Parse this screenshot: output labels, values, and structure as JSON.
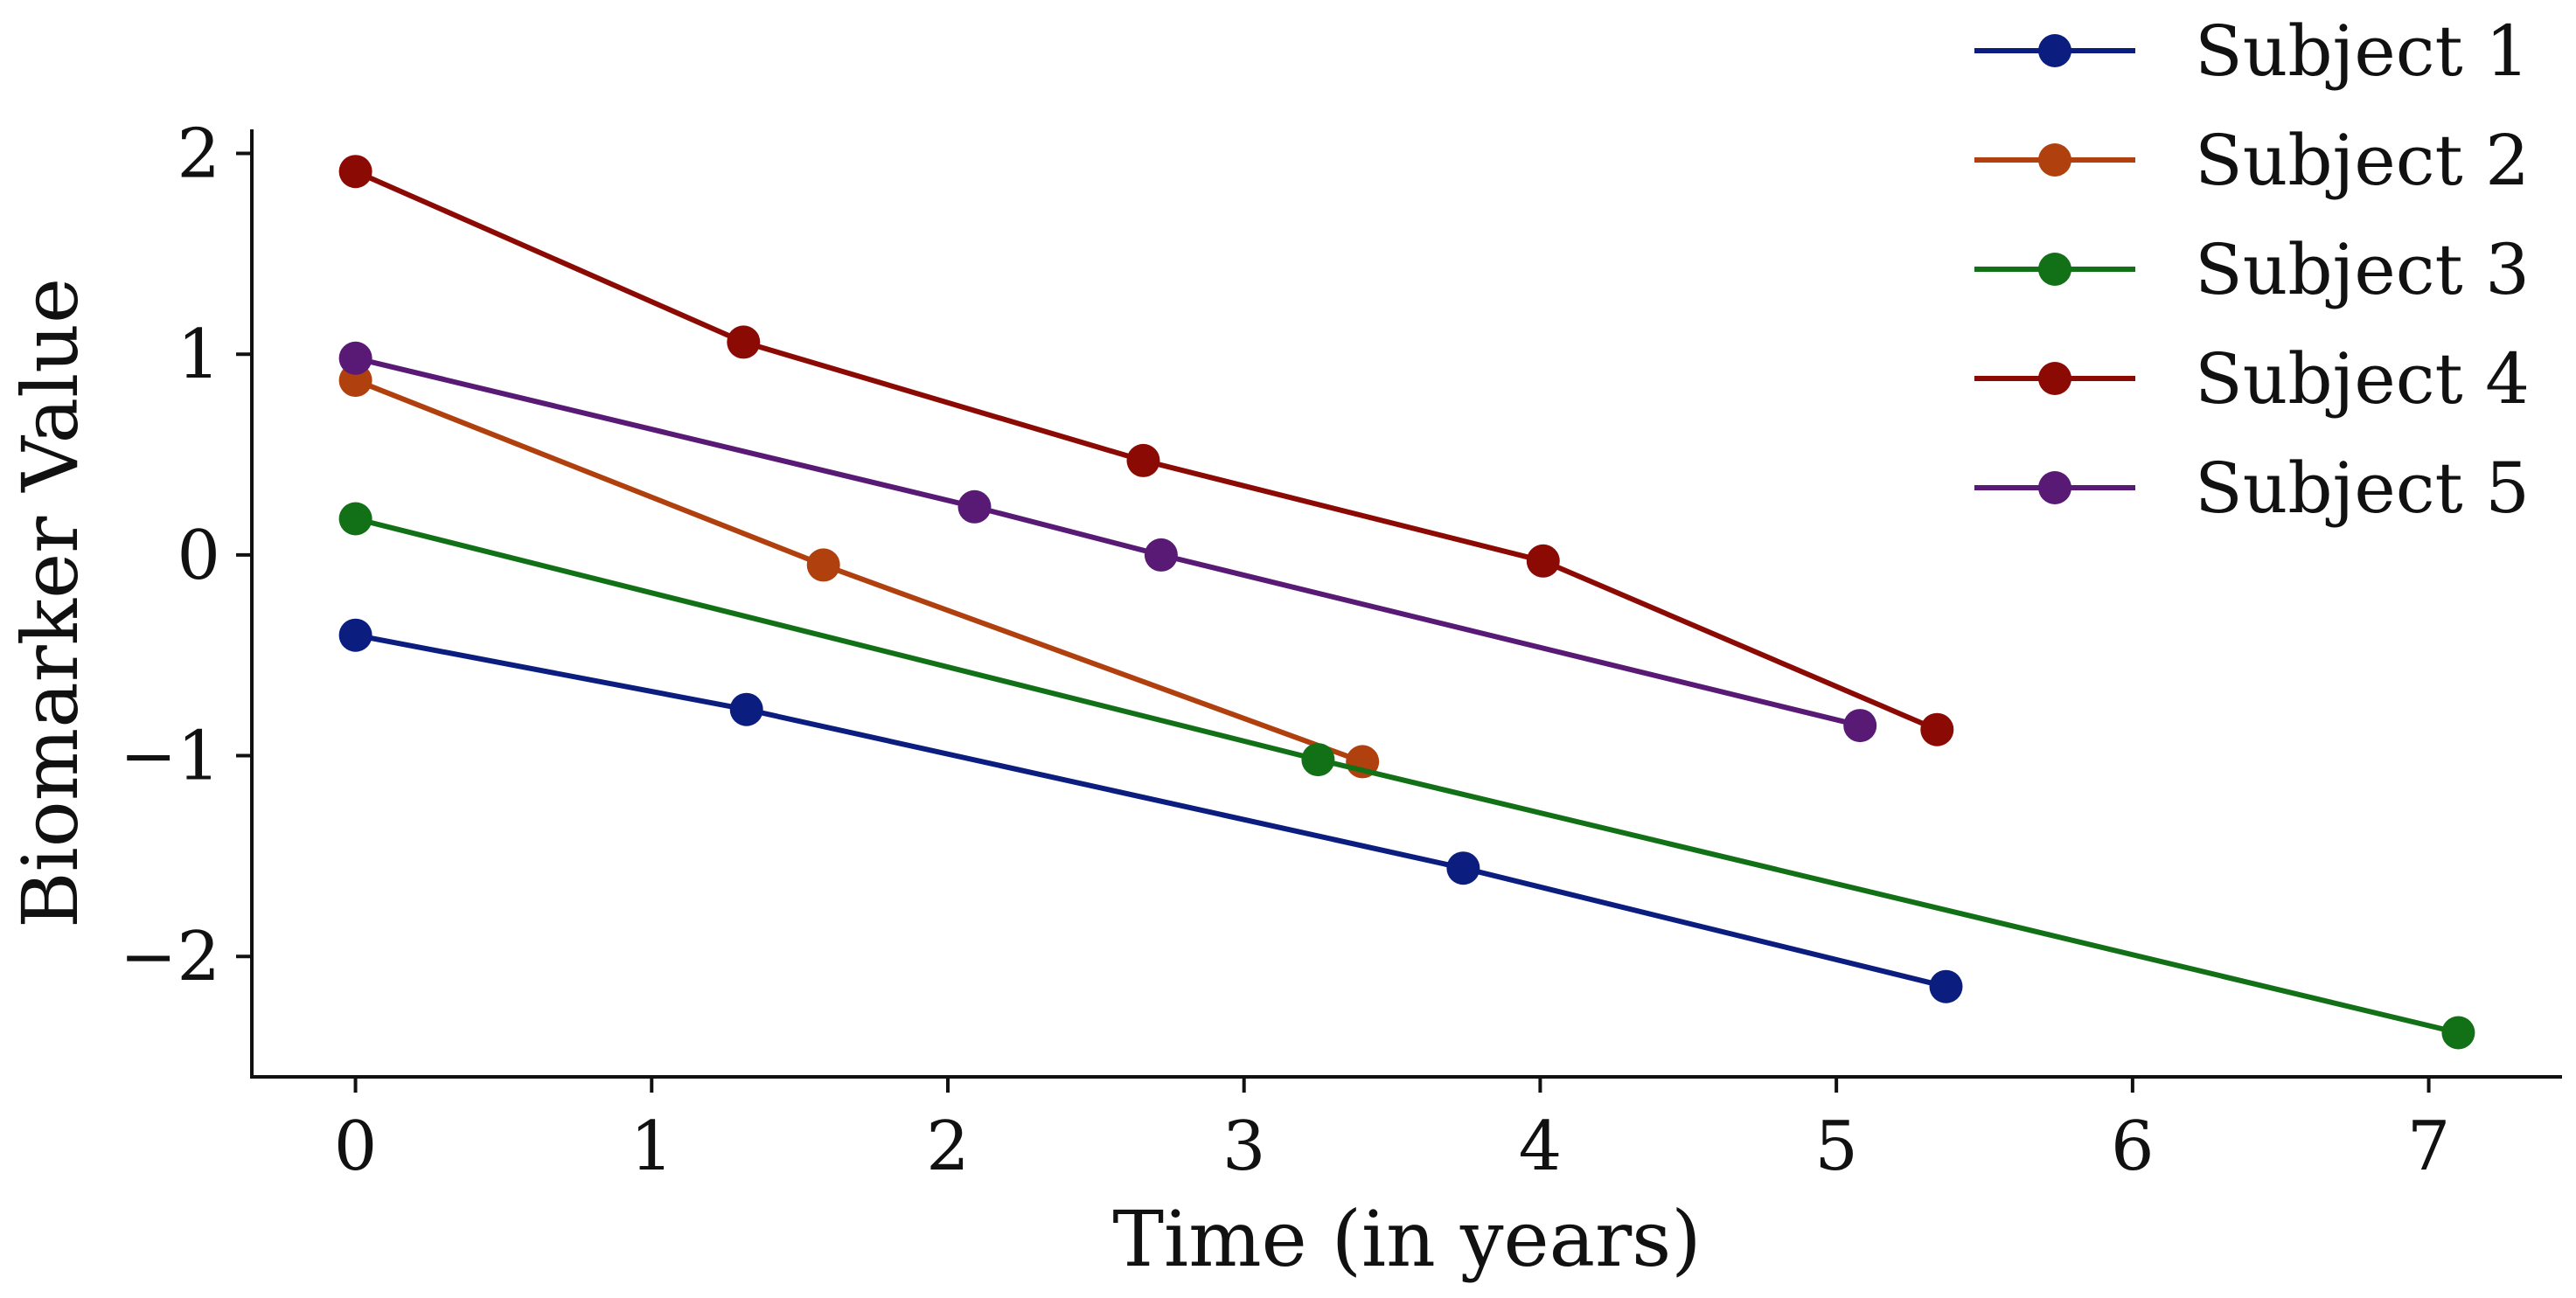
{
  "chart_data": {
    "type": "line",
    "title": "",
    "xlabel": "Time (in years)",
    "ylabel": "Biomarker Value",
    "xlim": [
      -0.35,
      7.45
    ],
    "ylim": [
      -2.6,
      2.12
    ],
    "x_ticks": [
      0,
      1,
      2,
      3,
      4,
      5,
      6,
      7
    ],
    "y_ticks": [
      -2,
      -1,
      0,
      1,
      2
    ],
    "y_tick_labels": [
      "−2",
      "−1",
      "0",
      "1",
      "2"
    ],
    "grid": false,
    "legend_position": "top-right",
    "series": [
      {
        "name": "Subject 1",
        "color": "#0b1e80",
        "x": [
          0,
          1.32,
          3.74,
          5.37
        ],
        "y": [
          -0.4,
          -0.77,
          -1.56,
          -2.15
        ]
      },
      {
        "name": "Subject 2",
        "color": "#b0410f",
        "x": [
          0,
          1.58,
          3.4
        ],
        "y": [
          0.87,
          -0.05,
          -1.03
        ]
      },
      {
        "name": "Subject 3",
        "color": "#127016",
        "x": [
          0,
          3.25,
          7.1
        ],
        "y": [
          0.18,
          -1.02,
          -2.38
        ]
      },
      {
        "name": "Subject 4",
        "color": "#8c0a04",
        "x": [
          0,
          1.31,
          2.66,
          4.01,
          5.34
        ],
        "y": [
          1.91,
          1.06,
          0.47,
          -0.03,
          -0.87
        ]
      },
      {
        "name": "Subject 5",
        "color": "#581a74",
        "x": [
          0,
          2.09,
          2.72,
          5.08
        ],
        "y": [
          0.98,
          0.24,
          0.0,
          -0.85
        ]
      }
    ]
  }
}
